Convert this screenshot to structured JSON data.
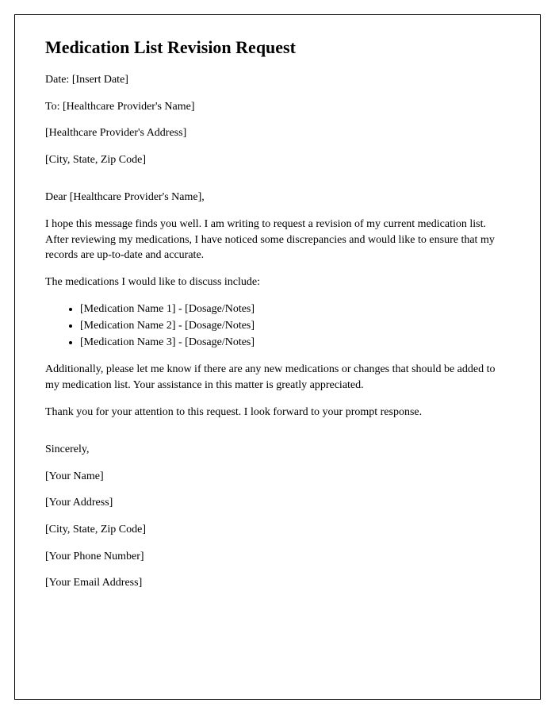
{
  "title": "Medication List Revision Request",
  "header": {
    "date_line": "Date: [Insert Date]",
    "to_line": "To: [Healthcare Provider's Name]",
    "provider_address": "[Healthcare Provider's Address]",
    "provider_city": "[City, State, Zip Code]"
  },
  "salutation": "Dear [Healthcare Provider's Name],",
  "body": {
    "intro": "I hope this message finds you well. I am writing to request a revision of my current medication list. After reviewing my medications, I have noticed some discrepancies and would like to ensure that my records are up-to-date and accurate.",
    "list_intro": "The medications I would like to discuss include:",
    "medications": [
      "[Medication Name 1] - [Dosage/Notes]",
      "[Medication Name 2] - [Dosage/Notes]",
      "[Medication Name 3] - [Dosage/Notes]"
    ],
    "additional": "Additionally, please let me know if there are any new medications or changes that should be added to my medication list. Your assistance in this matter is greatly appreciated.",
    "thanks": "Thank you for your attention to this request. I look forward to your prompt response."
  },
  "closing": {
    "signoff": "Sincerely,",
    "name": "[Your Name]",
    "address": "[Your Address]",
    "city": "[City, State, Zip Code]",
    "phone": "[Your Phone Number]",
    "email": "[Your Email Address]"
  }
}
